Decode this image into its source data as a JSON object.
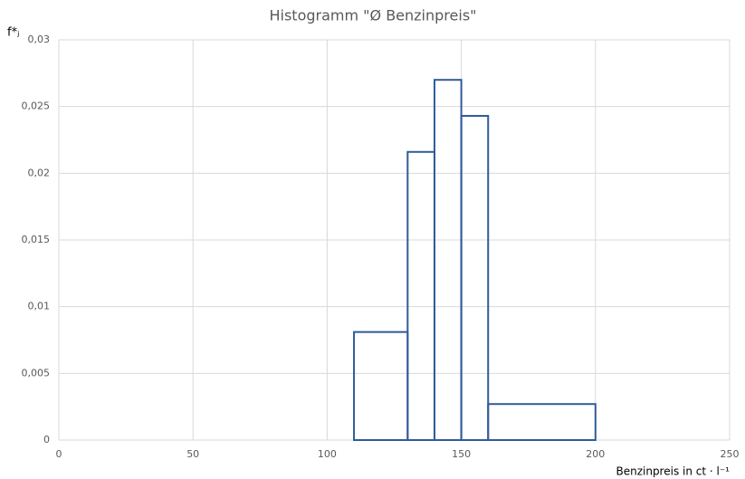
{
  "chart_data": {
    "type": "histogram",
    "title": "Histogramm \"Ø Benzinpreis\"",
    "xlabel": "Benzinpreis in ct · l⁻¹",
    "ylabel": "f*ⱼ",
    "bins": [
      110,
      130,
      140,
      150,
      160,
      200
    ],
    "counts": [
      0.0081,
      0.0216,
      0.027,
      0.0243,
      0.0027
    ],
    "color": "#2f5b9b",
    "xlim": [
      0,
      250
    ],
    "xticks": [
      0,
      50,
      100,
      150,
      200,
      250
    ],
    "ylim": [
      0,
      0.03
    ],
    "yticks": [
      0,
      {
        "value": 0.005,
        "label": "0,005"
      },
      {
        "value": 0.01,
        "label": "0,01"
      },
      {
        "value": 0.015,
        "label": "0,015"
      },
      {
        "value": 0.02,
        "label": "0,02"
      },
      {
        "value": 0.025,
        "label": "0,025"
      },
      {
        "value": 0.03,
        "label": "0,03"
      }
    ],
    "grid": true
  }
}
